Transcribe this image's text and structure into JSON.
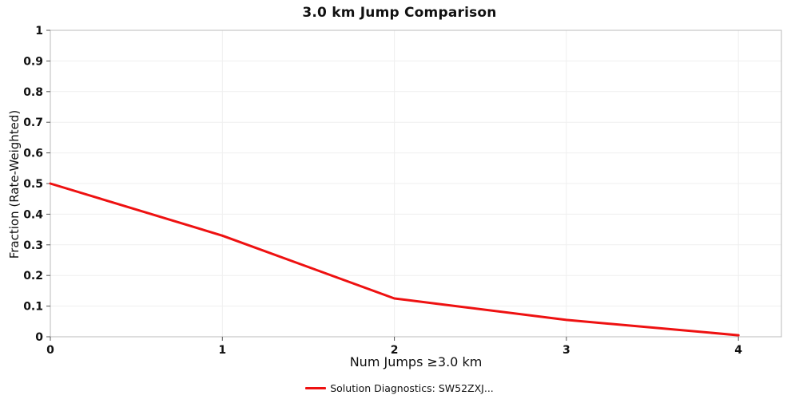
{
  "chart_data": {
    "type": "line",
    "title": "3.0 km Jump Comparison",
    "xlabel": "Num Jumps ≥3.0 km",
    "ylabel": "Fraction (Rate-Weighted)",
    "x": [
      0,
      1,
      2,
      3,
      4
    ],
    "series": [
      {
        "name": "Solution Diagnostics: SW52ZXJ...",
        "color": "#ee1111",
        "values": [
          0.5,
          0.33,
          0.125,
          0.055,
          0.005
        ]
      }
    ],
    "xlim": [
      0,
      4.25
    ],
    "ylim": [
      0,
      1
    ],
    "x_ticks": [
      0,
      1,
      2,
      3,
      4
    ],
    "y_ticks": [
      0,
      0.1,
      0.2,
      0.3,
      0.4,
      0.5,
      0.6,
      0.7,
      0.8,
      0.9,
      1
    ],
    "grid": true,
    "legend_position": "bottom"
  }
}
